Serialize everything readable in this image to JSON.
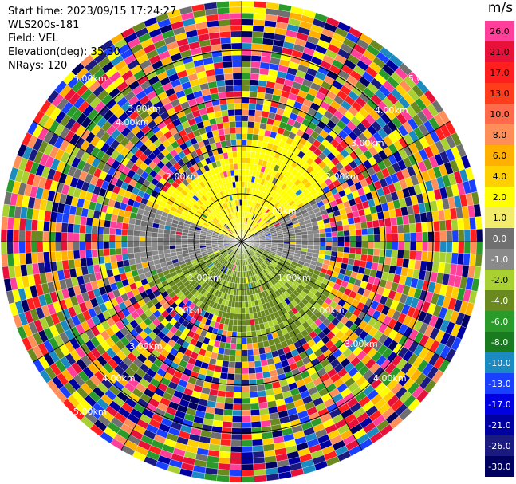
{
  "header": {
    "start_time": "Start time: 2023/09/15 17:24:27",
    "instrument": "WLS200s-181",
    "field": "Field: VEL",
    "elevation": "Elevation(deg): 35.30",
    "nrays": "NRays: 120"
  },
  "colorbar": {
    "unit": "m/s",
    "ticks": [
      "26.0",
      "21.0",
      "17.0",
      "13.0",
      "10.0",
      "8.0",
      "6.0",
      "4.0",
      "2.0",
      "1.0",
      "0.0",
      "-1.0",
      "-2.0",
      "-4.0",
      "-6.0",
      "-8.0",
      "-10.0",
      "-13.0",
      "-17.0",
      "-21.0",
      "-26.0",
      "-30.0"
    ],
    "colors": [
      "#ff3f9a",
      "#e8113a",
      "#ff1f1f",
      "#ff3c1c",
      "#ff6a4a",
      "#ff8e58",
      "#ffb000",
      "#ffd000",
      "#ffff00",
      "#f2ec6a",
      "#707070",
      "#8a8a8a",
      "#a8d030",
      "#6a8a20",
      "#2a9a2a",
      "#1a7a20",
      "#1a8ac0",
      "#1a40ff",
      "#0000e0",
      "#0000a0",
      "#1a1a80",
      "#000060"
    ]
  },
  "range_labels": [
    {
      "text": "1.00km"
    },
    {
      "text": "1.00km"
    },
    {
      "text": "1.00km"
    },
    {
      "text": "2.00km"
    },
    {
      "text": "2.00km"
    },
    {
      "text": "2.00km"
    },
    {
      "text": "2.00km"
    },
    {
      "text": "3.00km"
    },
    {
      "text": "3.00km"
    },
    {
      "text": "3.00km"
    },
    {
      "text": "3.00km"
    },
    {
      "text": "4.00km"
    },
    {
      "text": "4.00km"
    },
    {
      "text": "4.00km"
    },
    {
      "text": "4.00km"
    },
    {
      "text": "5.00km"
    },
    {
      "text": "5.00km"
    },
    {
      "text": "5.00km"
    }
  ]
}
